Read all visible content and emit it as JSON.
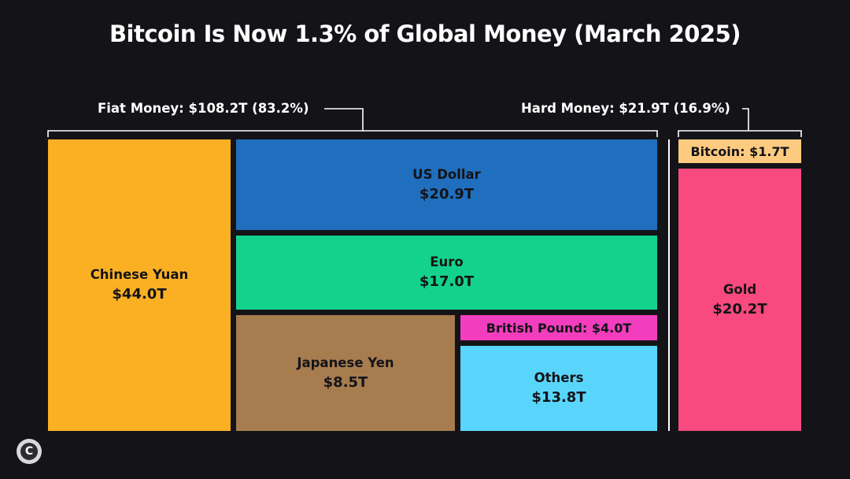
{
  "chart_data": {
    "type": "treemap",
    "title": "Bitcoin Is Now 1.3% of Global Money (March 2025)",
    "groups": [
      {
        "label": "Fiat Money: $108.2T (83.2%)",
        "total": 108.2,
        "share_pct": 83.2,
        "items": [
          {
            "name": "Chinese Yuan",
            "value": 44.0,
            "label": "$44.0T",
            "color": "#FBB024"
          },
          {
            "name": "US Dollar",
            "value": 20.9,
            "label": "$20.9T",
            "color": "#1F6FBE"
          },
          {
            "name": "Euro",
            "value": 17.0,
            "label": "$17.0T",
            "color": "#13D38C"
          },
          {
            "name": "Japanese Yen",
            "value": 8.5,
            "label": "$8.5T",
            "color": "#A77C4F"
          },
          {
            "name": "British Pound",
            "value": 4.0,
            "label": "$4.0T",
            "color": "#F23DBE"
          },
          {
            "name": "Others",
            "value": 13.8,
            "label": "$13.8T",
            "color": "#59D5FC"
          }
        ]
      },
      {
        "label": "Hard Money: $21.9T (16.9%)",
        "total": 21.9,
        "share_pct": 16.9,
        "items": [
          {
            "name": "Bitcoin",
            "value": 1.7,
            "label": "$1.7T",
            "color": "#FDCB80"
          },
          {
            "name": "Gold",
            "value": 20.2,
            "label": "$20.2T",
            "color": "#F84A7F"
          }
        ]
      }
    ],
    "unit": "T (trillion USD)"
  },
  "colors": {
    "background": "#141418",
    "text_light": "#ffffff",
    "text_dark": "#141418"
  },
  "logo": {
    "text": "C"
  }
}
